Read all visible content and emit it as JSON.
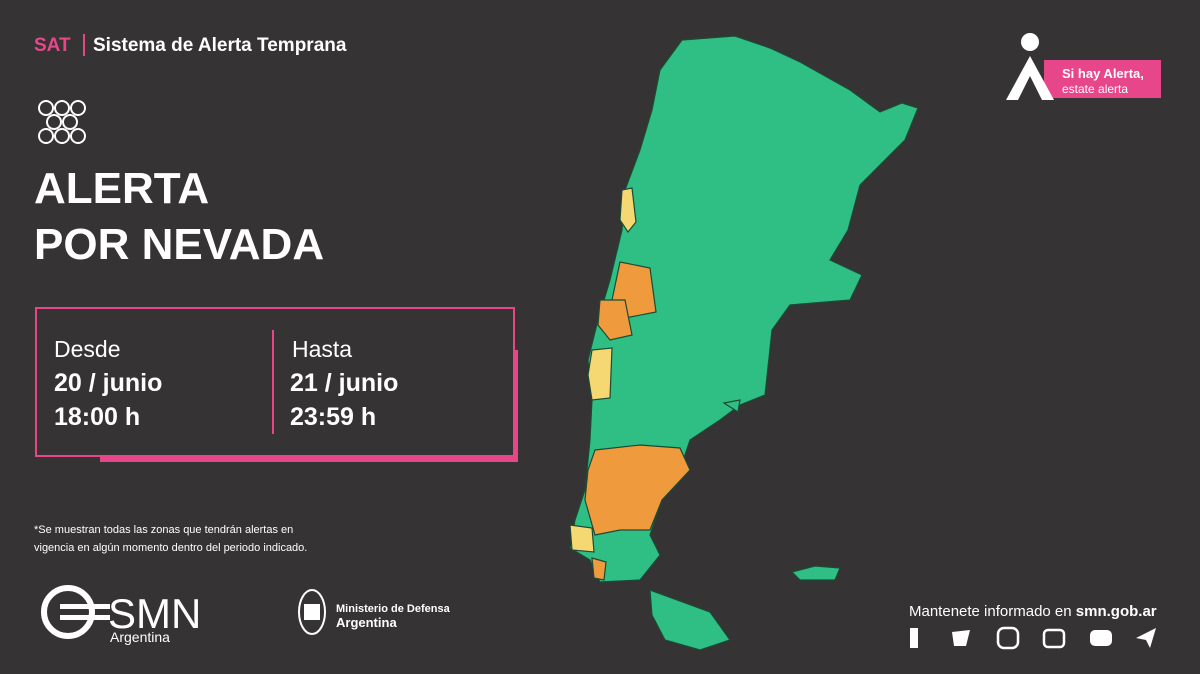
{
  "header": {
    "tag": "SAT",
    "title": "Sistema de Alerta Temprana"
  },
  "alert": {
    "line1": "ALERTA",
    "line2": "POR NEVADA"
  },
  "period": {
    "from": {
      "label": "Desde",
      "date": "20 / junio",
      "time": "18:00 h"
    },
    "to": {
      "label": "Hasta",
      "date": "21 / junio",
      "time": "23:59 h"
    }
  },
  "footnote": {
    "line1": "*Se muestran todas las zonas que tendrán alertas en",
    "line2": "vigencia en algún momento dentro del periodo indicado."
  },
  "badge": {
    "line1": "Si hay Alerta,",
    "line2": "estate alerta"
  },
  "logos": {
    "smn": "SMN",
    "smn_country": "Argentina",
    "ministry": "Ministerio de Defensa",
    "ministry_country": "Argentina"
  },
  "footer": {
    "text": "Mantenete informado en ",
    "site": "smn.gob.ar"
  }
}
